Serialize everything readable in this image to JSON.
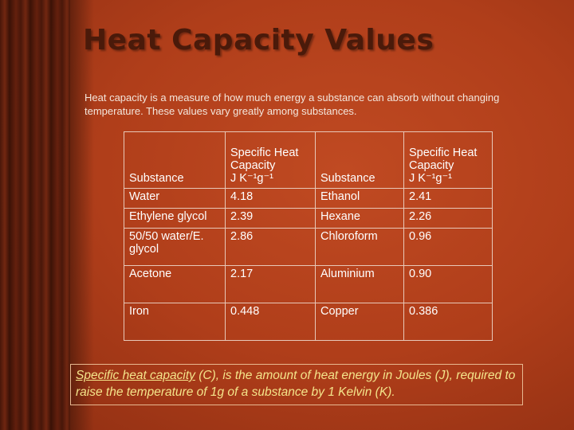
{
  "title": "Heat Capacity Values",
  "intro": "Heat capacity is a measure of how much energy a substance can absorb without changing temperature.  These values vary greatly among substances.",
  "table": {
    "header": [
      {
        "label": "Substance"
      },
      {
        "label": "Specific Heat Capacity",
        "unit": "J K⁻¹g⁻¹"
      },
      {
        "label": "Substance"
      },
      {
        "label": "Specific Heat Capacity",
        "unit": "J K⁻¹g⁻¹"
      }
    ],
    "rows": [
      [
        "Water",
        "4.18",
        "Ethanol",
        "2.41"
      ],
      [
        "Ethylene glycol",
        "2.39",
        "Hexane",
        "2.26"
      ],
      [
        "50/50 water/E. glycol",
        "2.86",
        "Chloroform",
        "0.96"
      ],
      [
        "Acetone",
        "2.17",
        "Aluminium",
        "0.90"
      ],
      [
        "Iron",
        "0.448",
        "Copper",
        "0.386"
      ]
    ]
  },
  "note": {
    "term": "Specific heat capacity",
    "text": " (C), is the amount of heat energy in Joules (J), required to raise the temperature of 1g of a substance by 1 Kelvin (K)."
  }
}
